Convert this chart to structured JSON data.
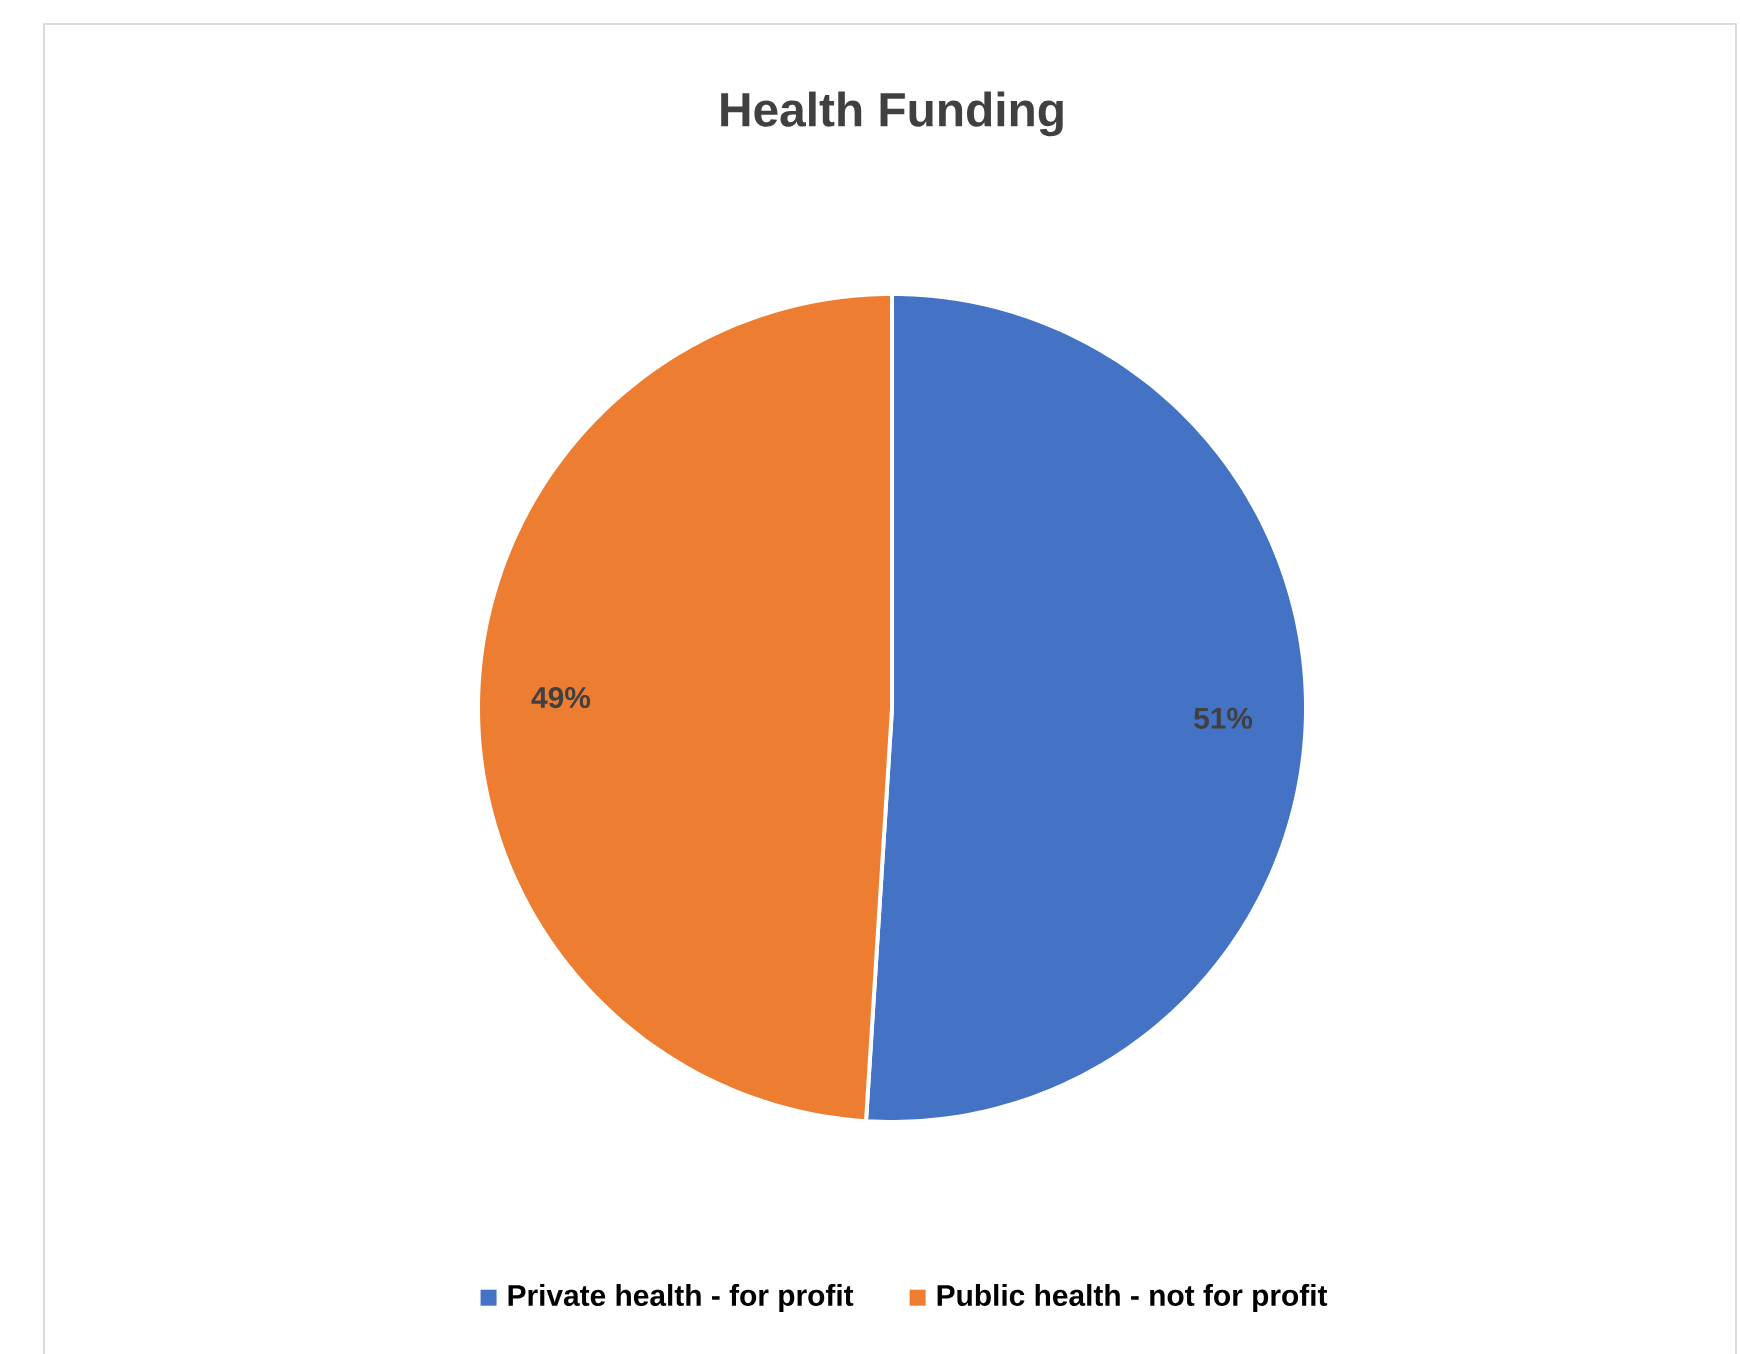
{
  "chart_data": {
    "type": "pie",
    "title": "Health Funding",
    "categories": [
      "Private  health - for profit",
      "Public health - not for profit"
    ],
    "values": [
      51,
      49
    ],
    "colors": [
      "#4472c4",
      "#ed7d31"
    ],
    "value_labels": [
      "51%",
      "49%"
    ],
    "legend": "bottom"
  }
}
